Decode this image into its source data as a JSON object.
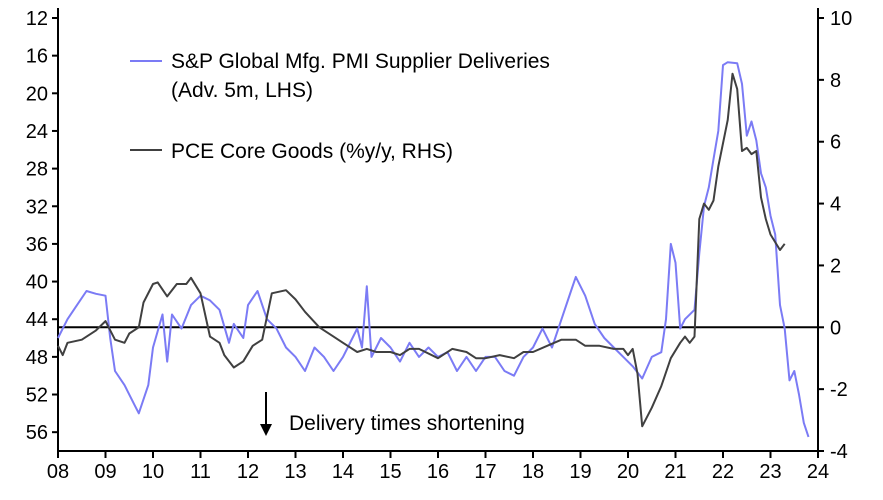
{
  "chart_data": {
    "type": "line",
    "title": "",
    "xlabel": "",
    "ylabel_left": "",
    "ylabel_right": "",
    "x_ticks": [
      "08",
      "09",
      "10",
      "11",
      "12",
      "13",
      "14",
      "15",
      "16",
      "17",
      "18",
      "19",
      "20",
      "21",
      "22",
      "23",
      "24"
    ],
    "x_range": [
      2008,
      2024
    ],
    "y_left": {
      "range": [
        12,
        58
      ],
      "inverted": true,
      "ticks": [
        12,
        16,
        20,
        24,
        28,
        32,
        36,
        40,
        44,
        48,
        52,
        56
      ]
    },
    "y_right": {
      "range": [
        -4,
        10
      ],
      "ticks": [
        10,
        8,
        6,
        4,
        2,
        0,
        -2,
        -4
      ]
    },
    "zero_line": "RHS 0",
    "annotation": "Delivery times shortening",
    "legend": [
      "S&P Global Mfg. PMI Supplier Deliveries",
      "(Adv. 5m, LHS)",
      "PCE Core Goods (%y/y, RHS)"
    ],
    "series": [
      {
        "name": "S&P Global Mfg. PMI Supplier Deliveries (Adv. 5m, LHS)",
        "axis": "left",
        "color": "#7b7bf5",
        "points": [
          [
            2008.0,
            46
          ],
          [
            2008.2,
            44
          ],
          [
            2008.4,
            42.5
          ],
          [
            2008.6,
            41
          ],
          [
            2008.8,
            41.3
          ],
          [
            2009.0,
            41.5
          ],
          [
            2009.1,
            46
          ],
          [
            2009.2,
            49.5
          ],
          [
            2009.4,
            51
          ],
          [
            2009.6,
            53
          ],
          [
            2009.7,
            54
          ],
          [
            2009.9,
            51
          ],
          [
            2010.0,
            47
          ],
          [
            2010.2,
            43.5
          ],
          [
            2010.3,
            48.5
          ],
          [
            2010.4,
            43.5
          ],
          [
            2010.6,
            45
          ],
          [
            2010.8,
            42.5
          ],
          [
            2011.0,
            41.5
          ],
          [
            2011.2,
            42
          ],
          [
            2011.4,
            43
          ],
          [
            2011.6,
            46.5
          ],
          [
            2011.7,
            44.5
          ],
          [
            2011.9,
            46
          ],
          [
            2012.0,
            42.5
          ],
          [
            2012.2,
            41
          ],
          [
            2012.4,
            44
          ],
          [
            2012.6,
            45
          ],
          [
            2012.8,
            47
          ],
          [
            2013.0,
            48
          ],
          [
            2013.2,
            49.5
          ],
          [
            2013.4,
            47
          ],
          [
            2013.6,
            48
          ],
          [
            2013.8,
            49.5
          ],
          [
            2014.0,
            48
          ],
          [
            2014.2,
            46
          ],
          [
            2014.3,
            45
          ],
          [
            2014.4,
            47
          ],
          [
            2014.5,
            40.5
          ],
          [
            2014.6,
            48
          ],
          [
            2014.8,
            46
          ],
          [
            2015.0,
            47
          ],
          [
            2015.2,
            48.5
          ],
          [
            2015.4,
            46.5
          ],
          [
            2015.6,
            48
          ],
          [
            2015.8,
            47
          ],
          [
            2016.0,
            48
          ],
          [
            2016.2,
            47.5
          ],
          [
            2016.4,
            49.5
          ],
          [
            2016.6,
            48
          ],
          [
            2016.8,
            49.5
          ],
          [
            2017.0,
            48
          ],
          [
            2017.2,
            48
          ],
          [
            2017.4,
            49.5
          ],
          [
            2017.6,
            50
          ],
          [
            2017.8,
            48
          ],
          [
            2018.0,
            47
          ],
          [
            2018.2,
            45
          ],
          [
            2018.4,
            47
          ],
          [
            2018.6,
            44
          ],
          [
            2018.8,
            41
          ],
          [
            2018.9,
            39.5
          ],
          [
            2019.1,
            41.5
          ],
          [
            2019.3,
            44.5
          ],
          [
            2019.5,
            46
          ],
          [
            2019.7,
            47
          ],
          [
            2019.9,
            48
          ],
          [
            2020.1,
            49
          ],
          [
            2020.3,
            50.3
          ],
          [
            2020.5,
            48
          ],
          [
            2020.7,
            47.5
          ],
          [
            2020.8,
            44
          ],
          [
            2020.9,
            36
          ],
          [
            2021.0,
            38
          ],
          [
            2021.1,
            45
          ],
          [
            2021.2,
            44
          ],
          [
            2021.4,
            43
          ],
          [
            2021.5,
            37
          ],
          [
            2021.6,
            32
          ],
          [
            2021.7,
            30
          ],
          [
            2021.8,
            27
          ],
          [
            2021.9,
            24
          ],
          [
            2022.0,
            17
          ],
          [
            2022.1,
            16.7
          ],
          [
            2022.3,
            16.8
          ],
          [
            2022.4,
            19
          ],
          [
            2022.5,
            24.5
          ],
          [
            2022.6,
            23
          ],
          [
            2022.7,
            25
          ],
          [
            2022.8,
            28.5
          ],
          [
            2022.9,
            30
          ],
          [
            2023.0,
            33
          ],
          [
            2023.1,
            35
          ],
          [
            2023.2,
            42.5
          ],
          [
            2023.3,
            45
          ],
          [
            2023.4,
            50.5
          ],
          [
            2023.5,
            49.5
          ],
          [
            2023.6,
            52
          ],
          [
            2023.7,
            55
          ],
          [
            2023.8,
            56.5
          ]
        ]
      },
      {
        "name": "PCE Core Goods (%y/y, RHS)",
        "axis": "right",
        "color": "#404040",
        "points": [
          [
            2008.0,
            -0.6
          ],
          [
            2008.1,
            -0.9
          ],
          [
            2008.2,
            -0.5
          ],
          [
            2008.5,
            -0.4
          ],
          [
            2008.8,
            -0.1
          ],
          [
            2009.0,
            0.2
          ],
          [
            2009.2,
            -0.4
          ],
          [
            2009.4,
            -0.5
          ],
          [
            2009.5,
            -0.2
          ],
          [
            2009.7,
            0
          ],
          [
            2009.8,
            0.8
          ],
          [
            2010.0,
            1.4
          ],
          [
            2010.1,
            1.45
          ],
          [
            2010.3,
            1.0
          ],
          [
            2010.5,
            1.4
          ],
          [
            2010.7,
            1.4
          ],
          [
            2010.8,
            1.6
          ],
          [
            2011.0,
            1.1
          ],
          [
            2011.2,
            -0.3
          ],
          [
            2011.4,
            -0.5
          ],
          [
            2011.5,
            -0.9
          ],
          [
            2011.7,
            -1.3
          ],
          [
            2011.9,
            -1.1
          ],
          [
            2012.1,
            -0.6
          ],
          [
            2012.3,
            -0.4
          ],
          [
            2012.5,
            1.1
          ],
          [
            2012.8,
            1.2
          ],
          [
            2013.0,
            0.9
          ],
          [
            2013.2,
            0.5
          ],
          [
            2013.5,
            0
          ],
          [
            2013.8,
            -0.3
          ],
          [
            2014.0,
            -0.5
          ],
          [
            2014.3,
            -0.8
          ],
          [
            2014.5,
            -0.7
          ],
          [
            2014.7,
            -0.8
          ],
          [
            2015.0,
            -0.8
          ],
          [
            2015.2,
            -0.9
          ],
          [
            2015.4,
            -0.7
          ],
          [
            2015.6,
            -0.7
          ],
          [
            2016.0,
            -1.0
          ],
          [
            2016.3,
            -0.7
          ],
          [
            2016.6,
            -0.8
          ],
          [
            2016.8,
            -1.0
          ],
          [
            2017.0,
            -1.0
          ],
          [
            2017.3,
            -0.9
          ],
          [
            2017.6,
            -1.0
          ],
          [
            2017.8,
            -0.8
          ],
          [
            2018.0,
            -0.8
          ],
          [
            2018.3,
            -0.6
          ],
          [
            2018.6,
            -0.4
          ],
          [
            2018.9,
            -0.4
          ],
          [
            2019.1,
            -0.6
          ],
          [
            2019.4,
            -0.6
          ],
          [
            2019.7,
            -0.7
          ],
          [
            2019.9,
            -0.7
          ],
          [
            2020.0,
            -0.9
          ],
          [
            2020.1,
            -0.7
          ],
          [
            2020.2,
            -1.5
          ],
          [
            2020.3,
            -3.2
          ],
          [
            2020.5,
            -2.6
          ],
          [
            2020.7,
            -1.9
          ],
          [
            2020.9,
            -1.0
          ],
          [
            2021.1,
            -0.5
          ],
          [
            2021.2,
            -0.3
          ],
          [
            2021.3,
            -0.5
          ],
          [
            2021.4,
            -0.3
          ],
          [
            2021.5,
            3.5
          ],
          [
            2021.6,
            4.0
          ],
          [
            2021.7,
            3.8
          ],
          [
            2021.8,
            4.1
          ],
          [
            2021.9,
            5.2
          ],
          [
            2022.1,
            6.7
          ],
          [
            2022.2,
            8.2
          ],
          [
            2022.3,
            7.7
          ],
          [
            2022.4,
            5.7
          ],
          [
            2022.5,
            5.8
          ],
          [
            2022.6,
            5.6
          ],
          [
            2022.7,
            5.7
          ],
          [
            2022.8,
            4.2
          ],
          [
            2022.9,
            3.5
          ],
          [
            2023.0,
            3.0
          ],
          [
            2023.2,
            2.5
          ],
          [
            2023.3,
            2.7
          ]
        ]
      }
    ]
  }
}
